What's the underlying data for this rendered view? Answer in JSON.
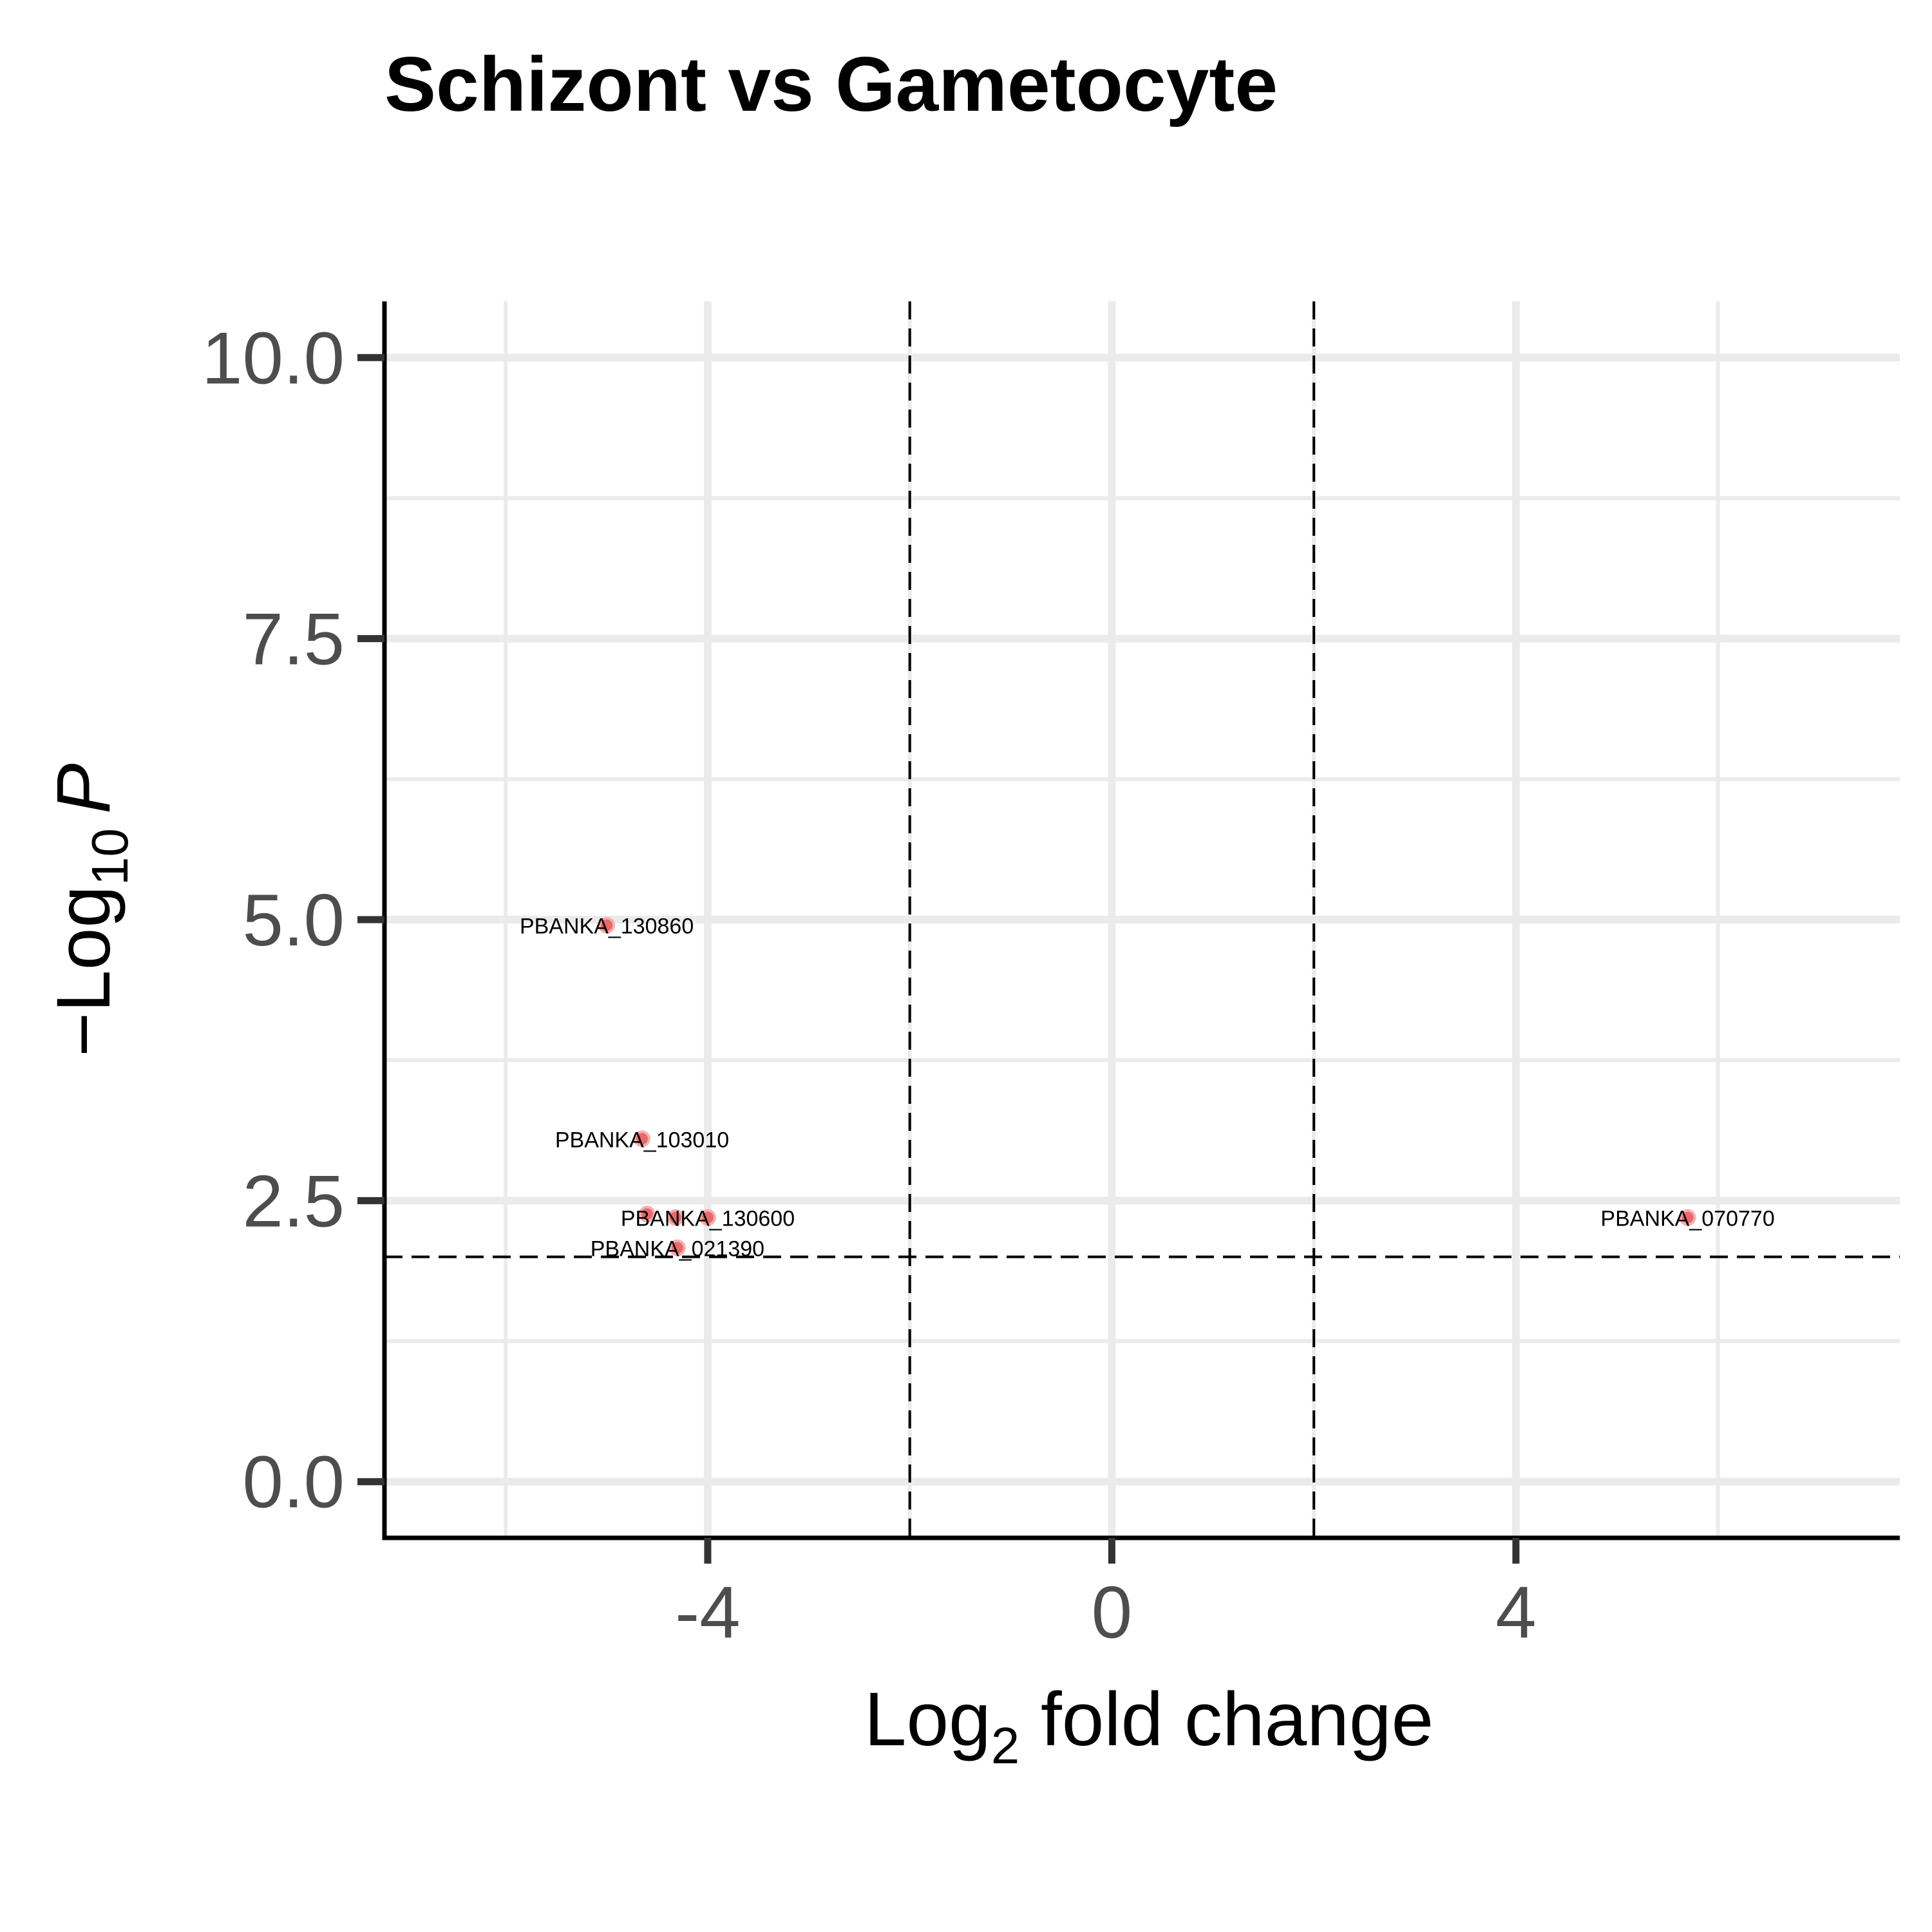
{
  "chart_data": {
    "type": "scatter",
    "title": "Schizont vs Gametocyte",
    "xlabel": {
      "prefix": "Log",
      "subscript": "2",
      "suffix": " fold change"
    },
    "ylabel": {
      "prefix": "−Log",
      "subscript": "10",
      "italic": "P"
    },
    "xlim": [
      -7.2,
      7.8
    ],
    "ylim": [
      -0.5,
      10.5
    ],
    "x_major_ticks": [
      -4,
      0,
      4
    ],
    "x_minor_ticks": [
      -6,
      -2,
      2,
      6
    ],
    "y_major_ticks": [
      0.0,
      2.5,
      5.0,
      7.5,
      10.0
    ],
    "y_minor_ticks": [
      1.25,
      3.75,
      6.25,
      8.75
    ],
    "x_tick_labels": [
      "-4",
      "0",
      "4"
    ],
    "y_tick_labels": [
      "0.0",
      "2.5",
      "5.0",
      "7.5",
      "10.0"
    ],
    "cutoffs": {
      "fold_change_x": [
        -2,
        2
      ],
      "pvalue_y": 2
    },
    "grid": true,
    "point_color": "#e8696b",
    "points": [
      {
        "x": -5.0,
        "y": 4.95,
        "label": "PBANKA_130860"
      },
      {
        "x": -4.65,
        "y": 3.05,
        "label": "PBANKA_103010"
      },
      {
        "x": -4.0,
        "y": 2.35,
        "label": "PBANKA_130600"
      },
      {
        "x": -4.6,
        "y": 2.38,
        "label": ""
      },
      {
        "x": -4.32,
        "y": 2.35,
        "label": ""
      },
      {
        "x": -4.3,
        "y": 2.08,
        "label": "PBANKA_021390"
      },
      {
        "x": 5.7,
        "y": 2.35,
        "label": "PBANKA_070770"
      }
    ]
  }
}
